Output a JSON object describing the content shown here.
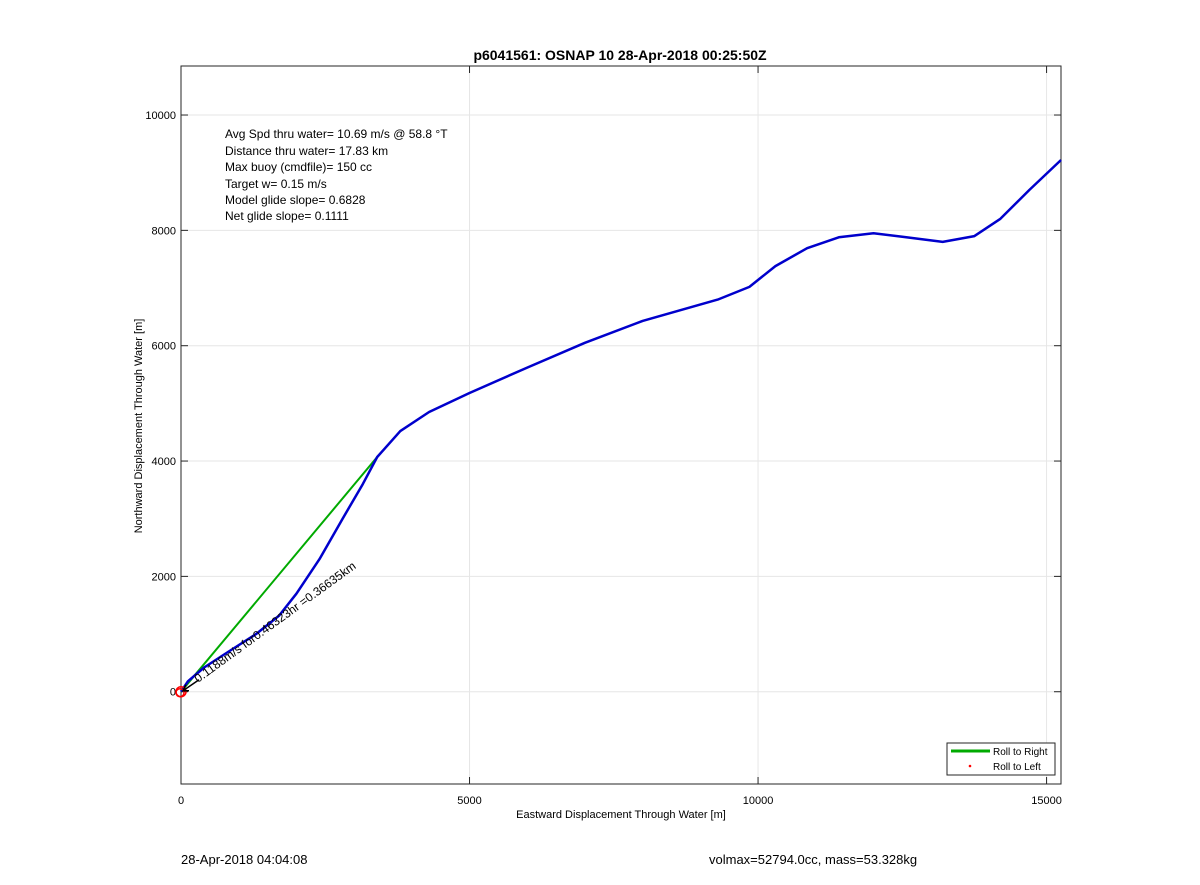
{
  "chart_data": {
    "type": "line",
    "title": "p6041561: OSNAP 10 28-Apr-2018 00:25:50Z",
    "xlabel": "Eastward Displacement Through Water [m]",
    "ylabel": "Northward Displacement Through Water [m]",
    "xlim": [
      0,
      15250
    ],
    "ylim": [
      -1600,
      10850
    ],
    "xticks": [
      0,
      5000,
      10000,
      15000
    ],
    "yticks": [
      0,
      2000,
      4000,
      6000,
      8000,
      10000
    ],
    "xtick_labels": [
      "0",
      "5000",
      "10000",
      "15000"
    ],
    "ytick_labels": [
      "0",
      "2000",
      "4000",
      "6000",
      "8000",
      "10000"
    ],
    "grid": true,
    "annotations": [
      "Avg Spd thru water= 10.69 m/s @  58.8 °T",
      "Distance thru water= 17.83 km",
      "Max buoy (cmdfile)= 150 cc",
      "Target w= 0.15 m/s",
      "Model glide slope= 0.6828",
      "Net glide slope= 0.1111"
    ],
    "current_label": "0.1188m/s for0.46323hr =0.36635km",
    "series": [
      {
        "name": "",
        "color": "#0000cc",
        "x": [
          0,
          120,
          400,
          800,
          1300,
          1700,
          2000,
          2400,
          2800,
          3150,
          3400,
          3800,
          4300,
          5000,
          6000,
          7000,
          8000,
          9300,
          9850,
          10300,
          10850,
          11400,
          12000,
          12500,
          13200,
          13750,
          14200,
          14700,
          15250
        ],
        "y": [
          0,
          180,
          420,
          680,
          1000,
          1320,
          1700,
          2300,
          3000,
          3600,
          4070,
          4520,
          4850,
          5180,
          5620,
          6050,
          6430,
          6800,
          7020,
          7380,
          7690,
          7880,
          7950,
          7890,
          7800,
          7900,
          8200,
          8700,
          9220
        ]
      },
      {
        "name": "Roll to Right",
        "color": "#00aa00",
        "x": [
          0,
          3400
        ],
        "y": [
          0,
          4070
        ]
      },
      {
        "name": "Roll to Left",
        "color": "#ff0000",
        "x": [],
        "y": []
      }
    ],
    "legend_position": "bottom-right"
  },
  "footer": {
    "timestamp": "28-Apr-2018 04:04:08",
    "summary": "volmax=52794.0cc, mass=53.328kg"
  }
}
